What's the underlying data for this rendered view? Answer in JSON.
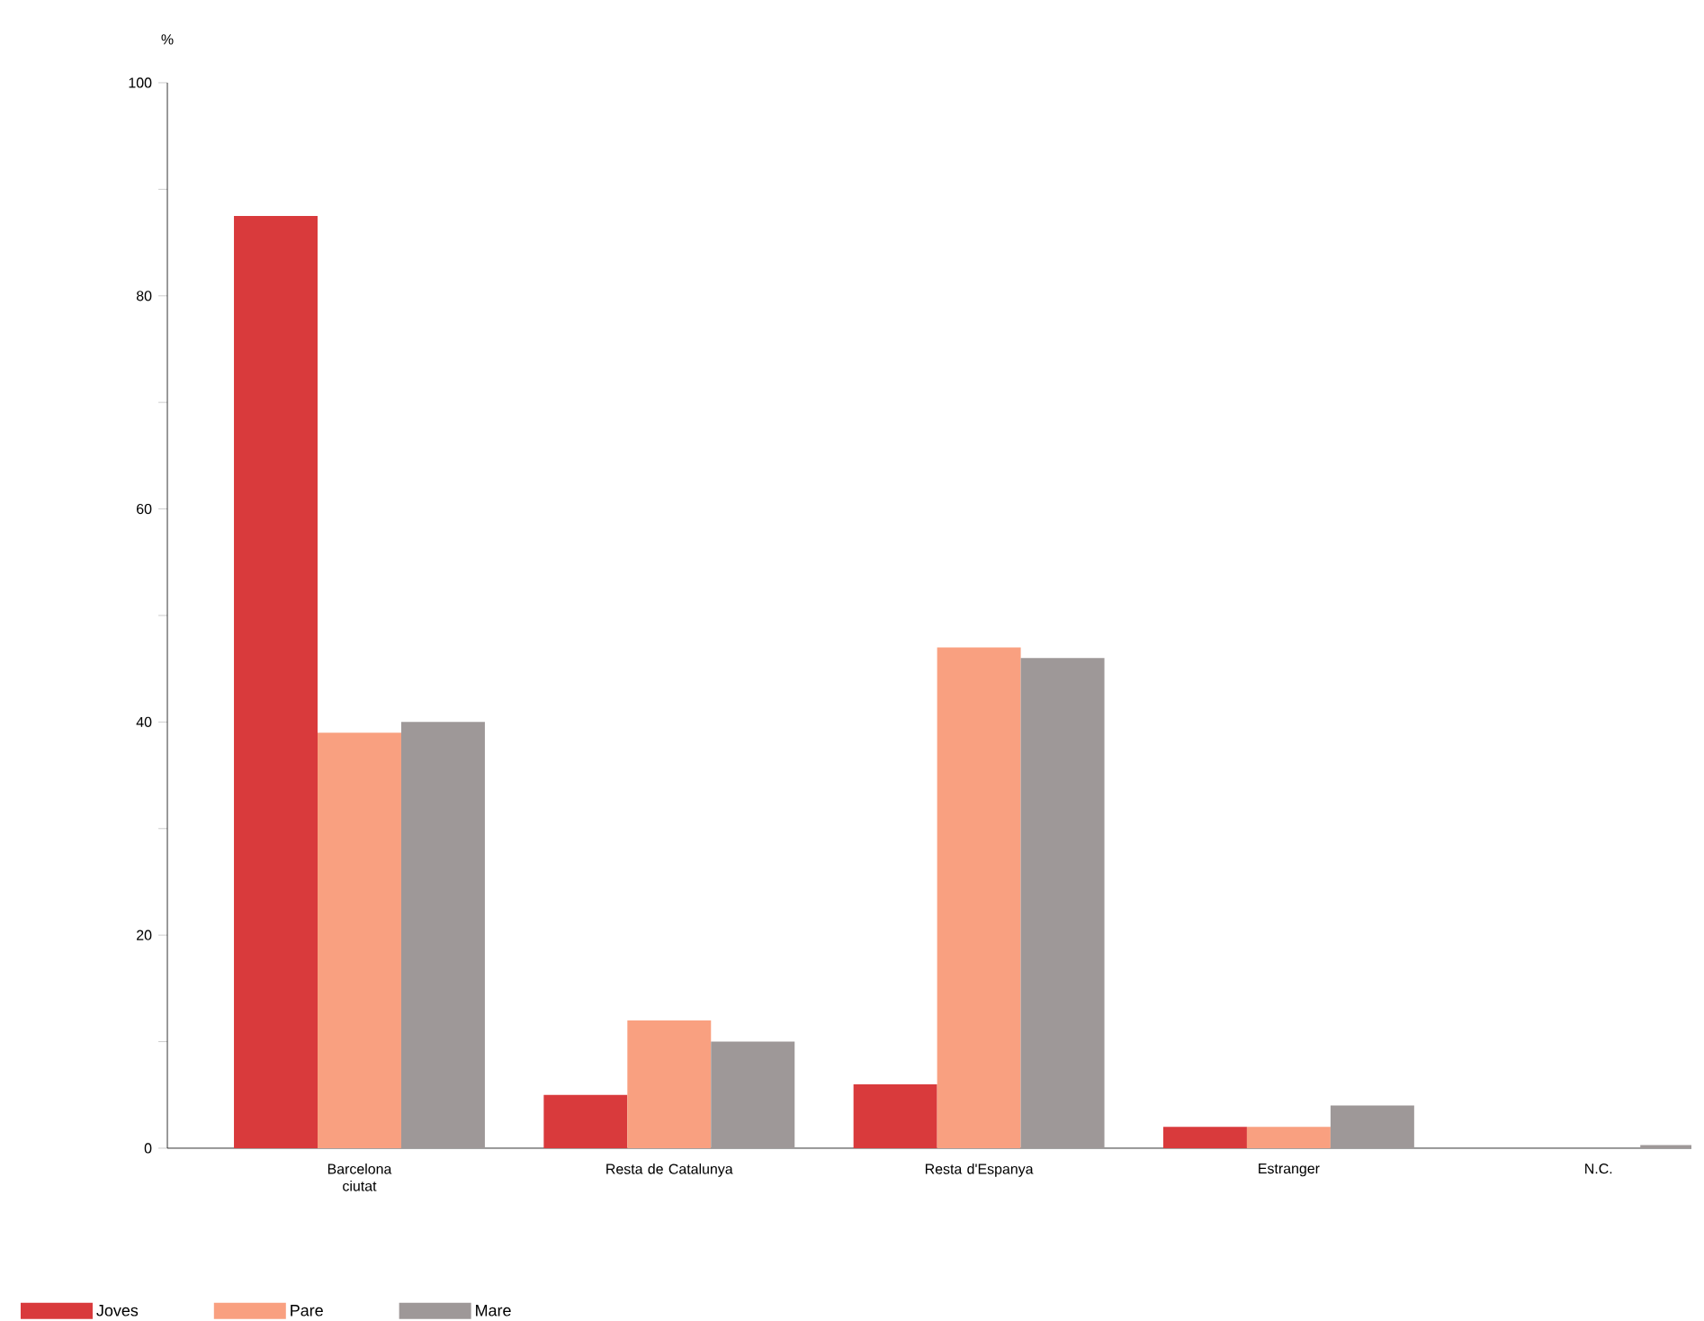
{
  "chart_data": {
    "type": "bar",
    "ylabel": "%",
    "categories": [
      "Barcelona\nciutat",
      "Resta de Catalunya",
      "Resta d'Espanya",
      "Estranger",
      "N.C."
    ],
    "series": [
      {
        "name": "Joves",
        "color": "#d93a3c",
        "values": [
          87.5,
          5,
          6,
          2,
          0
        ]
      },
      {
        "name": "Pare",
        "color": "#f9a080",
        "values": [
          39,
          12,
          47,
          2,
          0
        ]
      },
      {
        "name": "Mare",
        "color": "#9e9898",
        "values": [
          40,
          10,
          46,
          4,
          0.3
        ]
      }
    ],
    "ylim": [
      0,
      100
    ],
    "yticks": [
      0,
      {
        "value": 10,
        "label": null
      },
      20,
      {
        "value": 30,
        "label": null
      },
      40,
      {
        "value": 50,
        "label": null
      },
      60,
      {
        "value": 70,
        "label": null
      },
      80,
      {
        "value": 90,
        "label": null
      },
      100
    ],
    "legend": "bottom left",
    "grid": false
  }
}
